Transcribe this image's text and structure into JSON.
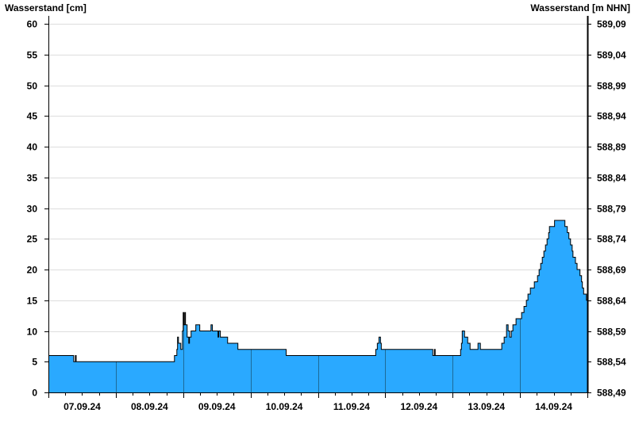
{
  "chart_data": {
    "type": "area",
    "ylabel_left": "Wasserstand [cm]",
    "ylabel_right": "Wasserstand [m NHN]",
    "ylim": [
      0,
      60
    ],
    "y_ticks": [
      0,
      5,
      10,
      15,
      20,
      25,
      30,
      35,
      40,
      45,
      50,
      55,
      60
    ],
    "y_right_ticks": [
      "588,49",
      "588,54",
      "588,59",
      "588,64",
      "588,69",
      "588,74",
      "588,79",
      "588,84",
      "588,89",
      "588,94",
      "588,99",
      "589,04",
      "589,09"
    ],
    "x_tick_labels": [
      "07.09.24",
      "08.09.24",
      "09.09.24",
      "10.09.24",
      "11.09.24",
      "12.09.24",
      "13.09.24",
      "14.09.24"
    ],
    "xlim": [
      "07.09.24 00:00",
      "15.09.24 00:00"
    ],
    "grid": true,
    "fill_color": "#2aa9ff",
    "line_color": "#000000",
    "series": [
      {
        "points": [
          [
            "07.09.24 00:00",
            6
          ],
          [
            "07.09.24 09:00",
            5
          ],
          [
            "07.09.24 09:36",
            6
          ],
          [
            "07.09.24 09:53",
            5
          ],
          [
            "08.09.24 20:54",
            6
          ],
          [
            "08.09.24 21:45",
            7
          ],
          [
            "08.09.24 22:00",
            9
          ],
          [
            "08.09.24 22:20",
            8
          ],
          [
            "08.09.24 23:10",
            7
          ],
          [
            "08.09.24 23:45",
            10
          ],
          [
            "09.09.24 00:00",
            13
          ],
          [
            "09.09.24 00:15",
            11
          ],
          [
            "09.09.24 00:35",
            13
          ],
          [
            "09.09.24 00:50",
            11
          ],
          [
            "09.09.24 01:25",
            9
          ],
          [
            "09.09.24 02:00",
            8
          ],
          [
            "09.09.24 02:15",
            9
          ],
          [
            "09.09.24 02:50",
            10
          ],
          [
            "09.09.24 04:30",
            11
          ],
          [
            "09.09.24 05:55",
            10
          ],
          [
            "09.09.24 09:55",
            11
          ],
          [
            "09.09.24 10:25",
            10
          ],
          [
            "09.09.24 12:25",
            9
          ],
          [
            "09.09.24 12:40",
            10
          ],
          [
            "09.09.24 13:15",
            9
          ],
          [
            "09.09.24 15:50",
            8
          ],
          [
            "09.09.24 19:30",
            7
          ],
          [
            "10.09.24 12:42",
            6
          ],
          [
            "11.09.24 20:36",
            7
          ],
          [
            "11.09.24 21:10",
            8
          ],
          [
            "11.09.24 21:45",
            9
          ],
          [
            "11.09.24 22:18",
            8
          ],
          [
            "11.09.24 22:35",
            7
          ],
          [
            "12.09.24 16:56",
            6
          ],
          [
            "12.09.24 17:30",
            7
          ],
          [
            "12.09.24 17:47",
            6
          ],
          [
            "13.09.24 02:50",
            7
          ],
          [
            "13.09.24 03:08",
            8
          ],
          [
            "13.09.24 03:25",
            10
          ],
          [
            "13.09.24 04:14",
            9
          ],
          [
            "13.09.24 05:22",
            8
          ],
          [
            "13.09.24 06:13",
            7
          ],
          [
            "13.09.24 09:02",
            8
          ],
          [
            "13.09.24 09:53",
            7
          ],
          [
            "13.09.24 17:30",
            8
          ],
          [
            "13.09.24 18:21",
            9
          ],
          [
            "13.09.24 19:12",
            11
          ],
          [
            "13.09.24 19:46",
            10
          ],
          [
            "13.09.24 20:20",
            9
          ],
          [
            "13.09.24 20:54",
            10
          ],
          [
            "13.09.24 21:28",
            11
          ],
          [
            "13.09.24 22:35",
            12
          ],
          [
            "14.09.24 00:34",
            13
          ],
          [
            "14.09.24 01:25",
            14
          ],
          [
            "14.09.24 02:16",
            15
          ],
          [
            "14.09.24 02:50",
            16
          ],
          [
            "14.09.24 03:41",
            17
          ],
          [
            "14.09.24 05:06",
            18
          ],
          [
            "14.09.24 06:14",
            19
          ],
          [
            "14.09.24 06:48",
            20
          ],
          [
            "14.09.24 07:22",
            21
          ],
          [
            "14.09.24 07:56",
            22
          ],
          [
            "14.09.24 08:30",
            23
          ],
          [
            "14.09.24 09:04",
            24
          ],
          [
            "14.09.24 09:38",
            25
          ],
          [
            "14.09.24 10:12",
            26
          ],
          [
            "14.09.24 10:29",
            27
          ],
          [
            "14.09.24 12:18",
            28
          ],
          [
            "14.09.24 16:00",
            27
          ],
          [
            "14.09.24 16:51",
            26
          ],
          [
            "14.09.24 17:25",
            25
          ],
          [
            "14.09.24 18:00",
            24
          ],
          [
            "14.09.24 18:35",
            23
          ],
          [
            "14.09.24 18:52",
            22
          ],
          [
            "14.09.24 19:45",
            21
          ],
          [
            "14.09.24 20:20",
            20
          ],
          [
            "14.09.24 21:22",
            19
          ],
          [
            "14.09.24 21:56",
            18
          ],
          [
            "14.09.24 22:13",
            17
          ],
          [
            "14.09.24 22:40",
            16
          ],
          [
            "14.09.24 23:40",
            15
          ],
          [
            "15.09.24 00:00",
            15
          ]
        ]
      }
    ]
  }
}
